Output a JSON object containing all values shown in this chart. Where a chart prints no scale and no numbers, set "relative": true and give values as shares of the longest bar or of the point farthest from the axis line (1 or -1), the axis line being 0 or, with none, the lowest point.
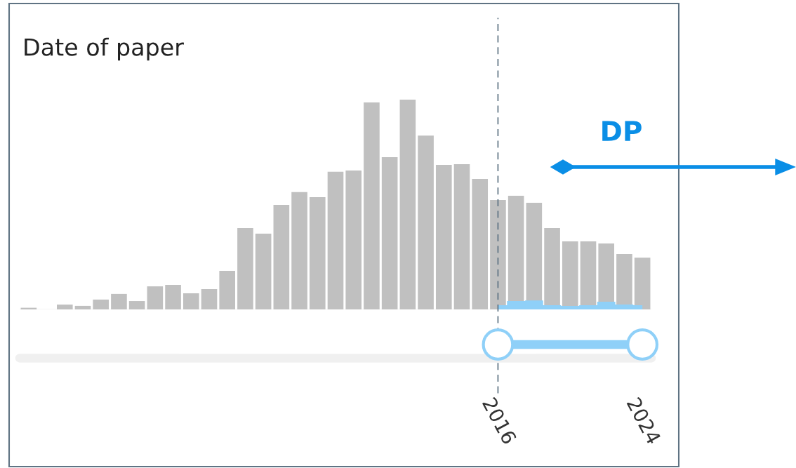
{
  "chart_data": {
    "type": "bar",
    "title": "Date of paper",
    "relative": true,
    "x": [
      1990,
      1991,
      1992,
      1993,
      1994,
      1995,
      1996,
      1997,
      1998,
      1999,
      2000,
      2001,
      2002,
      2003,
      2004,
      2005,
      2006,
      2007,
      2008,
      2009,
      2010,
      2011,
      2012,
      2013,
      2014,
      2015,
      2016,
      2017,
      2018,
      2019,
      2020,
      2021,
      2022,
      2023,
      2024
    ],
    "series": [
      {
        "color": "#c0c0c0",
        "values": [
          0.008,
          0,
          0.023,
          0.017,
          0.047,
          0.074,
          0.04,
          0.11,
          0.117,
          0.077,
          0.097,
          0.184,
          0.388,
          0.361,
          0.498,
          0.559,
          0.535,
          0.656,
          0.662,
          0.987,
          0.726,
          1,
          0.829,
          0.689,
          0.692,
          0.622,
          0.522,
          0.542,
          0.508,
          0.388,
          0.324,
          0.324,
          0.314,
          0.264,
          0.247
        ]
      },
      {
        "type": "area",
        "color": "#8fd0f8",
        "values": [
          null,
          null,
          null,
          null,
          null,
          null,
          null,
          null,
          null,
          null,
          null,
          null,
          null,
          null,
          null,
          null,
          null,
          null,
          null,
          null,
          null,
          null,
          null,
          null,
          null,
          null,
          0.02,
          0.04,
          0.043,
          0.02,
          0.017,
          0.02,
          0.037,
          0.023,
          0.02
        ]
      }
    ],
    "xlim": [
      1989.5,
      2024.5
    ],
    "xticks": [
      2016,
      2024
    ],
    "tick_labels": "x",
    "ref_lines": [
      {
        "axis": "x",
        "value": 2016,
        "color": "#5a7080",
        "line_style": "dashed"
      }
    ],
    "annotations": [
      "DP"
    ],
    "grid": false
  }
}
